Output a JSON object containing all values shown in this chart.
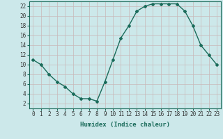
{
  "x": [
    0,
    1,
    2,
    3,
    4,
    5,
    6,
    7,
    8,
    9,
    10,
    11,
    12,
    13,
    14,
    15,
    16,
    17,
    18,
    19,
    20,
    21,
    22,
    23
  ],
  "y": [
    11,
    10,
    8,
    6.5,
    5.5,
    4,
    3,
    3,
    2.5,
    6.5,
    11,
    15.5,
    18,
    21,
    22,
    22.5,
    22.5,
    22.5,
    22.5,
    21,
    18,
    14,
    12,
    10
  ],
  "line_color": "#1a6b5a",
  "bg_color": "#cce8ea",
  "grid_color": "#c8b8b8",
  "xlabel": "Humidex (Indice chaleur)",
  "xlim": [
    -0.5,
    23.5
  ],
  "ylim": [
    1,
    23
  ],
  "yticks": [
    2,
    4,
    6,
    8,
    10,
    12,
    14,
    16,
    18,
    20,
    22
  ],
  "xticks": [
    0,
    1,
    2,
    3,
    4,
    5,
    6,
    7,
    8,
    9,
    10,
    11,
    12,
    13,
    14,
    15,
    16,
    17,
    18,
    19,
    20,
    21,
    22,
    23
  ],
  "tick_fontsize": 5.5,
  "label_fontsize": 6.5,
  "marker": "D",
  "marker_size": 2.0,
  "linewidth": 1.0
}
